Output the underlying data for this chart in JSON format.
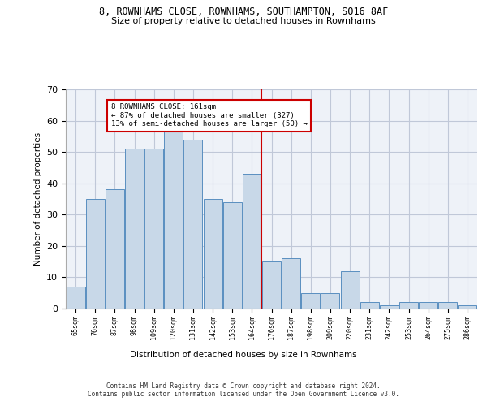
{
  "title1": "8, ROWNHAMS CLOSE, ROWNHAMS, SOUTHAMPTON, SO16 8AF",
  "title2": "Size of property relative to detached houses in Rownhams",
  "xlabel": "Distribution of detached houses by size in Rownhams",
  "ylabel": "Number of detached properties",
  "bar_labels": [
    "65sqm",
    "76sqm",
    "87sqm",
    "98sqm",
    "109sqm",
    "120sqm",
    "131sqm",
    "142sqm",
    "153sqm",
    "164sqm",
    "176sqm",
    "187sqm",
    "198sqm",
    "209sqm",
    "220sqm",
    "231sqm",
    "242sqm",
    "253sqm",
    "264sqm",
    "275sqm",
    "286sqm"
  ],
  "bar_values": [
    7,
    35,
    38,
    51,
    51,
    57,
    54,
    35,
    34,
    43,
    15,
    16,
    5,
    5,
    12,
    2,
    1,
    2,
    2,
    2,
    1
  ],
  "bar_color": "#c8d8e8",
  "bar_edge_color": "#5a8fc0",
  "vline_x_idx": 9.5,
  "vline_color": "#cc0000",
  "annotation_text": "8 ROWNHAMS CLOSE: 161sqm\n← 87% of detached houses are smaller (327)\n13% of semi-detached houses are larger (50) →",
  "annotation_box_color": "#cc0000",
  "ylim": [
    0,
    70
  ],
  "yticks": [
    0,
    10,
    20,
    30,
    40,
    50,
    60,
    70
  ],
  "grid_color": "#c0c8d8",
  "bg_color": "#eef2f8",
  "footer": "Contains HM Land Registry data © Crown copyright and database right 2024.\nContains public sector information licensed under the Open Government Licence v3.0."
}
